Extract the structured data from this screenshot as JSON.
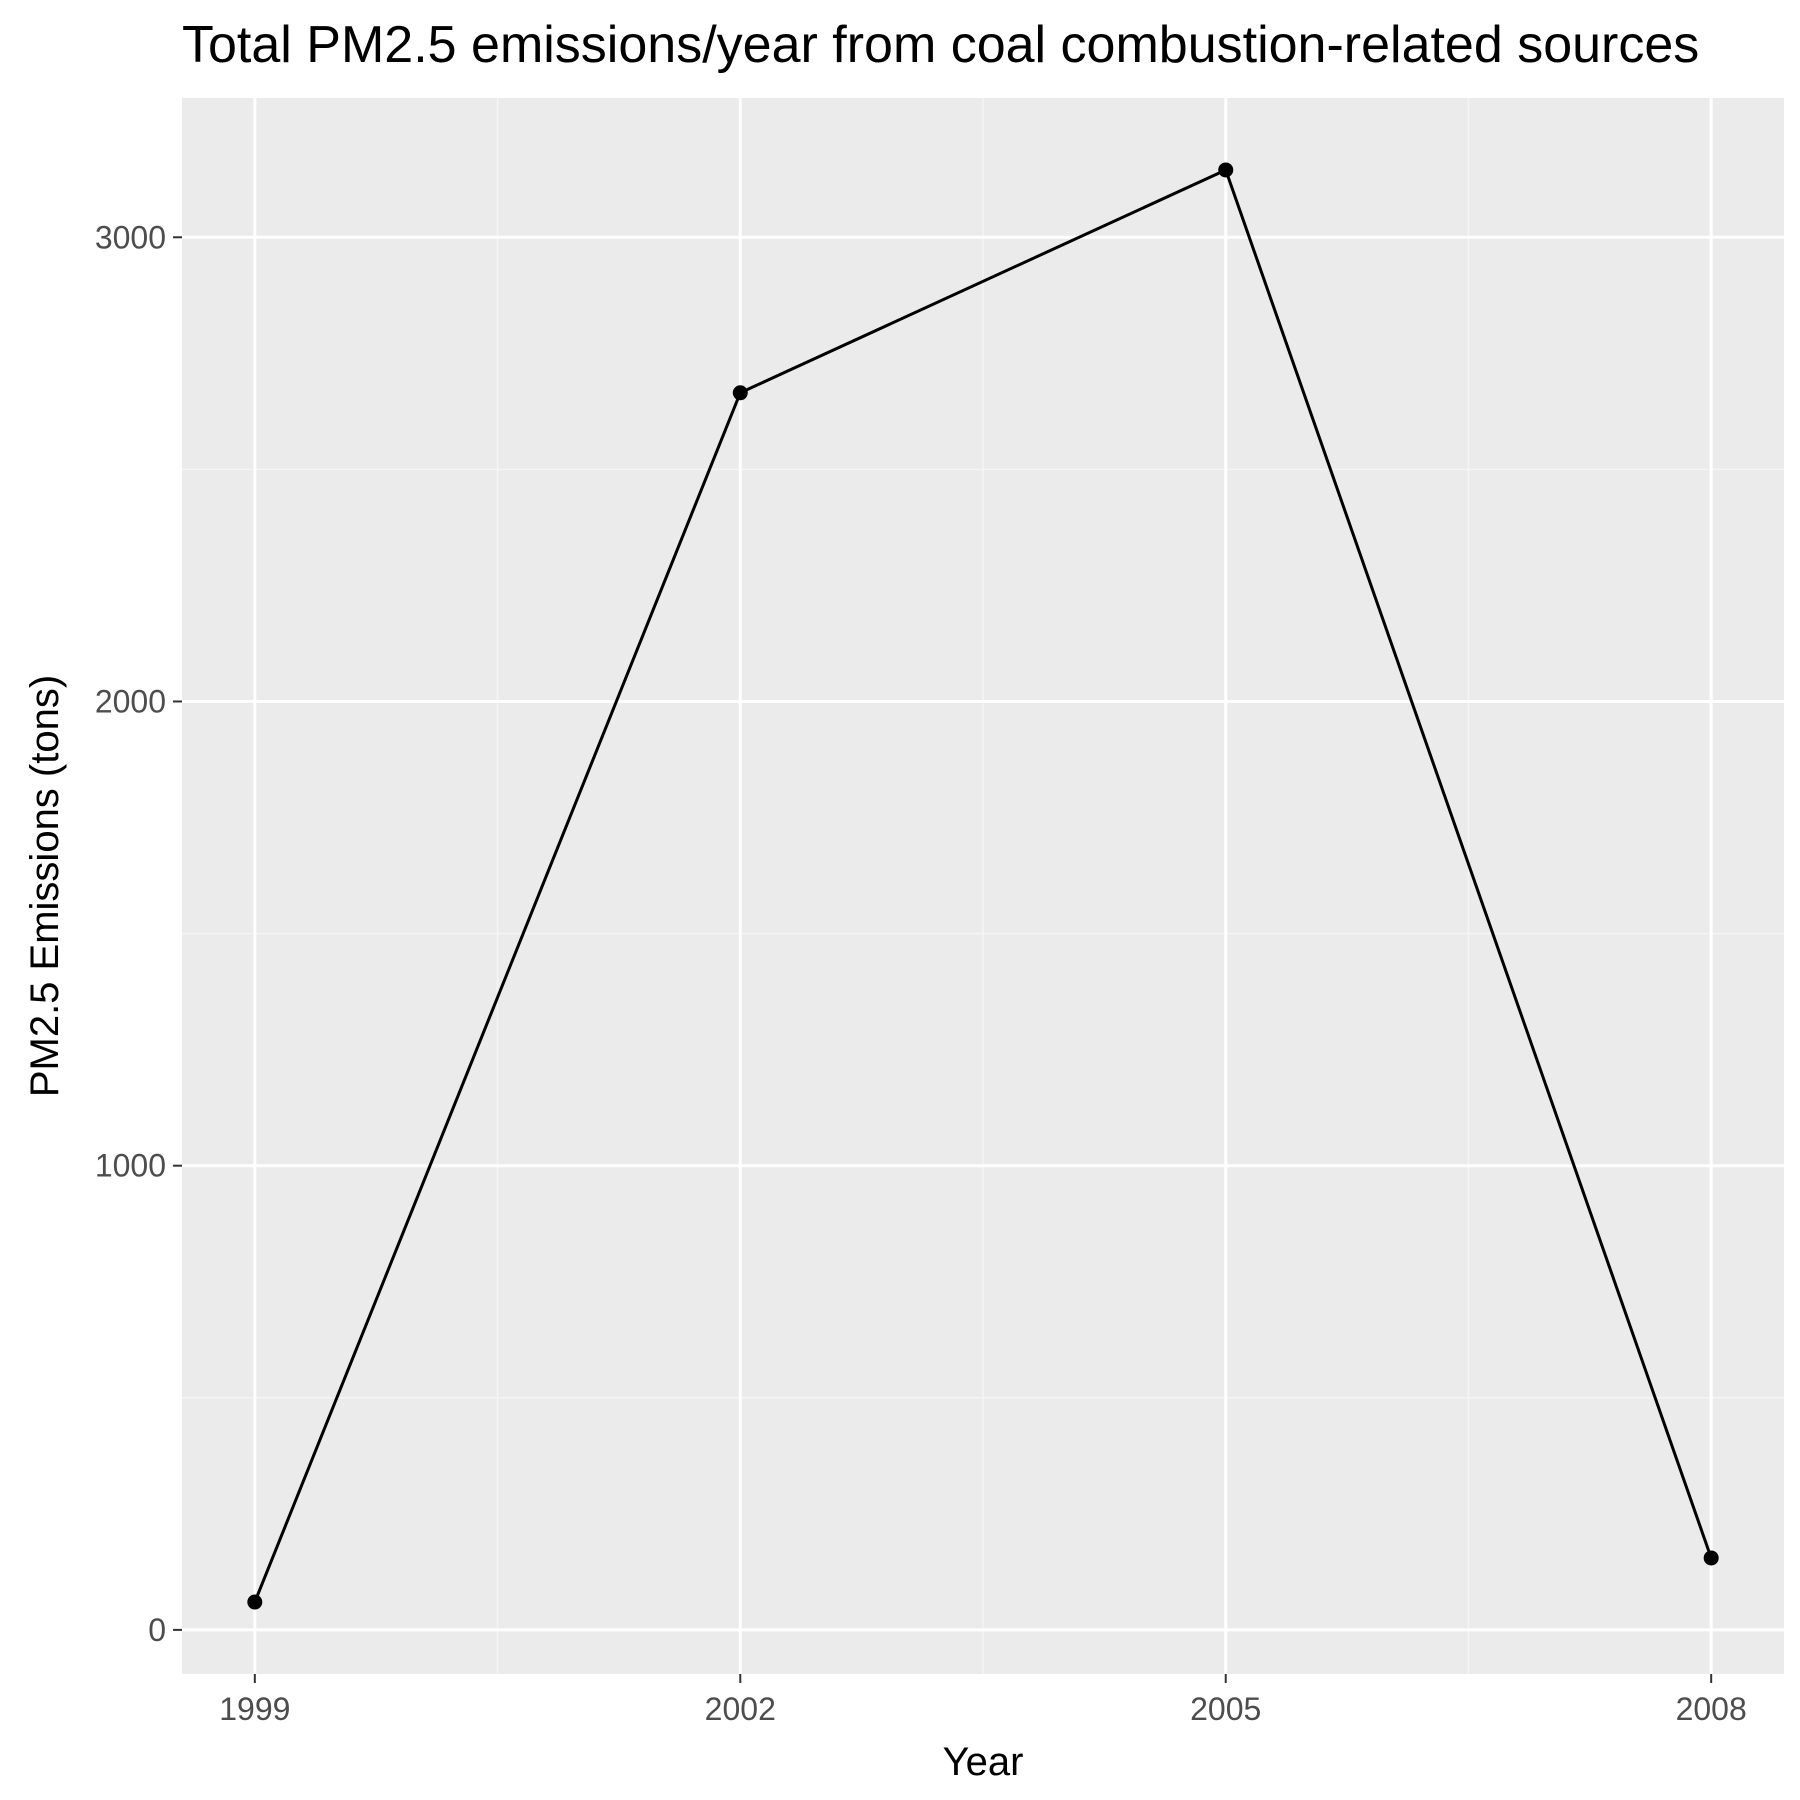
{
  "chart_data": {
    "type": "line",
    "title": "Total PM2.5 emissions/year from coal combustion-related sources",
    "xlabel": "Year",
    "ylabel": "PM2.5 Emissions (tons)",
    "x": [
      1999,
      2002,
      2005,
      2008
    ],
    "series": [
      {
        "values": [
          60,
          2665,
          3145,
          155
        ]
      }
    ],
    "x_ticks": [
      "1999",
      "2002",
      "2005",
      "2008"
    ],
    "y_ticks": [
      "0",
      "1000",
      "2000",
      "3000"
    ],
    "xlim": [
      1998.55,
      2008.45
    ],
    "ylim": [
      -95,
      3300
    ],
    "grid": true,
    "legend": "none",
    "colors": {
      "panel_background": "#ebebeb",
      "grid_major": "#ffffff",
      "grid_minor": "#f5f5f5",
      "line": "#000000",
      "tick_label": "#4d4d4d",
      "tick_mark": "#333333"
    }
  }
}
